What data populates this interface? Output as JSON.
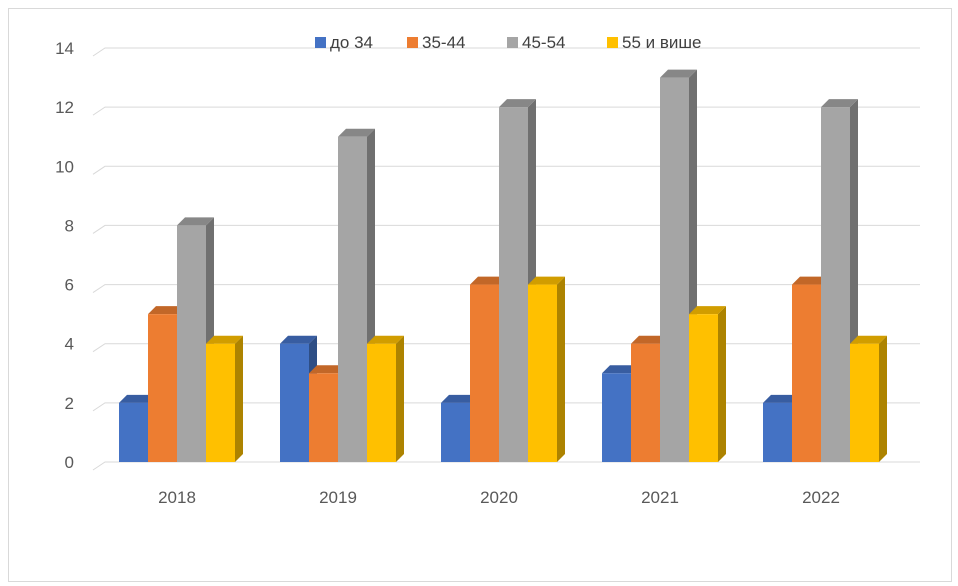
{
  "chart_data": {
    "type": "bar",
    "style": "3d-clustered-column",
    "title": "",
    "xlabel": "",
    "ylabel": "",
    "categories": [
      "2018",
      "2019",
      "2020",
      "2021",
      "2022"
    ],
    "ylim": [
      0,
      14
    ],
    "yticks": [
      0,
      2,
      4,
      6,
      8,
      10,
      12,
      14
    ],
    "grid": true,
    "legend_position": "top",
    "series": [
      {
        "name": "до 34",
        "color": "#4472C4",
        "values": [
          2,
          4,
          2,
          3,
          2
        ]
      },
      {
        "name": "35-44",
        "color": "#ED7D31",
        "values": [
          5,
          3,
          6,
          4,
          6
        ]
      },
      {
        "name": "45-54",
        "color": "#A5A5A5",
        "values": [
          8,
          11,
          12,
          13,
          12
        ]
      },
      {
        "name": "55 и више",
        "color": "#FFC000",
        "values": [
          4,
          4,
          6,
          5,
          4
        ]
      }
    ]
  }
}
